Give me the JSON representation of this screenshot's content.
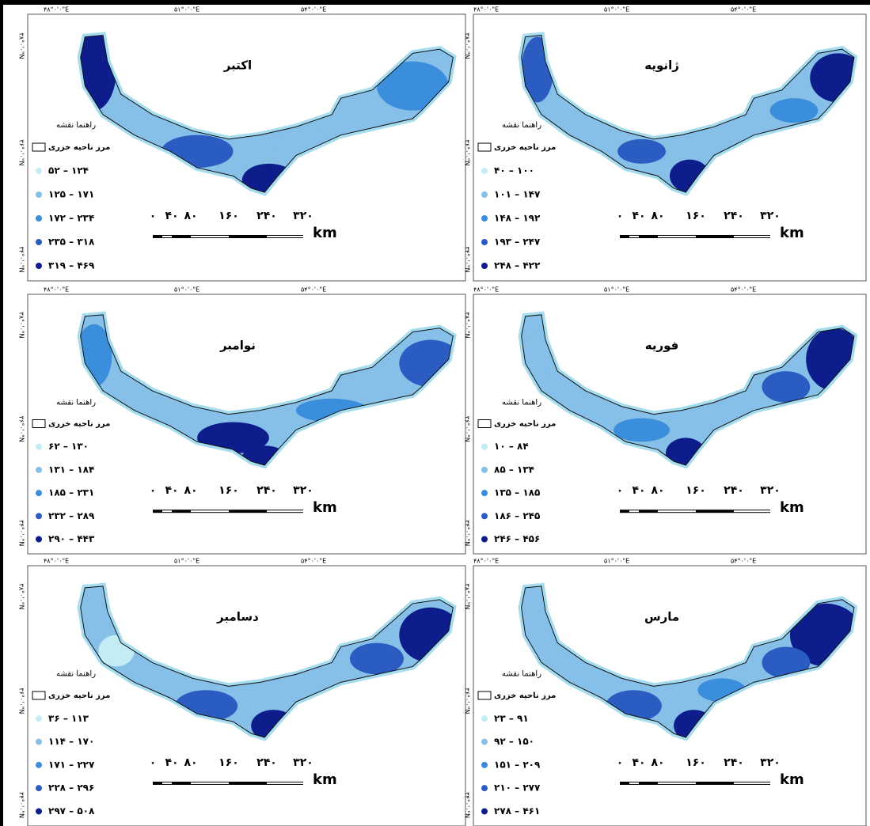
{
  "grid_labels": {
    "x": [
      "۴۸°۰'۰\"E",
      "۵۱°۰'۰\"E",
      "۵۴°۰'۰\"E"
    ],
    "y": [
      "۳۸°۰'۰\"N",
      "۳۶°۰'۰\"N",
      "۳۴°۰'۰\"N"
    ]
  },
  "map_guide": "راهنما نقشه",
  "boundary_label": "مرز ناحیه خزری",
  "scale_bar": {
    "labels": [
      "۰",
      "۴۰",
      "۸۰",
      "۱۶۰",
      "۲۴۰",
      "۳۲۰"
    ],
    "unit": "km"
  },
  "class_colors": [
    "#c4ecf4",
    "#86bfe8",
    "#3a8edb",
    "#2b5cc2",
    "#0e1d8c"
  ],
  "panels": [
    {
      "title": "اکتبر",
      "legend": [
        "۵۲ – ۱۲۴",
        "۱۲۵ – ۱۷۱",
        "۱۷۲ – ۲۳۴",
        "۲۳۵ – ۳۱۸",
        "۳۱۹ – ۴۶۹"
      ]
    },
    {
      "title": "ژانویه",
      "legend": [
        "۴۰ – ۱۰۰",
        "۱۰۱ – ۱۴۷",
        "۱۴۸ – ۱۹۲",
        "۱۹۳ – ۲۴۷",
        "۲۴۸ – ۴۲۲"
      ]
    },
    {
      "title": "نوامبر",
      "legend": [
        "۶۲ – ۱۳۰",
        "۱۳۱ – ۱۸۴",
        "۱۸۵ – ۲۳۱",
        "۲۳۲ – ۲۸۹",
        "۲۹۰ – ۴۴۳"
      ]
    },
    {
      "title": "فوریه",
      "legend": [
        "۱۰ – ۸۴",
        "۸۵ – ۱۳۴",
        "۱۳۵ – ۱۸۵",
        "۱۸۶ – ۲۴۵",
        "۲۴۶ – ۴۵۶"
      ]
    },
    {
      "title": "دسامبر",
      "legend": [
        "۳۶ – ۱۱۳",
        "۱۱۴ – ۱۷۰",
        "۱۷۱ – ۲۲۷",
        "۲۲۸ – ۲۹۶",
        "۲۹۷ – ۵۰۸"
      ]
    },
    {
      "title": "مارس",
      "legend": [
        "۲۳ – ۹۱",
        "۹۲ – ۱۵۰",
        "۱۵۱ – ۲۰۹",
        "۲۱۰ – ۲۷۷",
        "۲۷۸ – ۴۶۱"
      ]
    }
  ]
}
